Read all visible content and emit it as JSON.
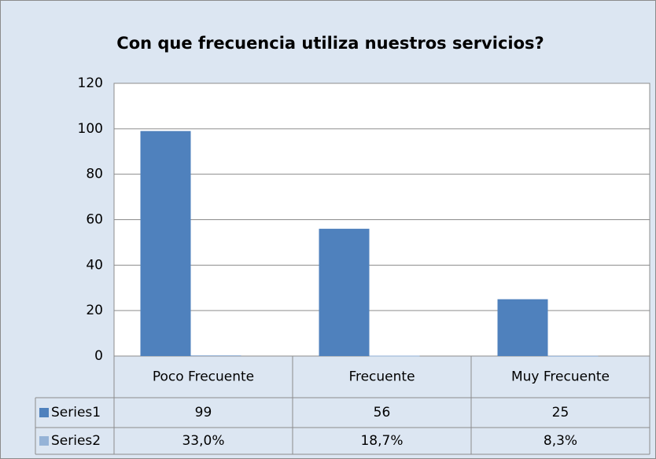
{
  "chart_data": {
    "type": "bar",
    "title": "Con que frecuencia utiliza  nuestros servicios?",
    "categories": [
      "Poco Frecuente",
      "Frecuente",
      "Muy Frecuente"
    ],
    "series": [
      {
        "name": "Series1",
        "color": "#4f81bd",
        "values": [
          99,
          56,
          25
        ]
      },
      {
        "name": "Series2",
        "color": "#95b3d7",
        "values": [
          0.33,
          0.187,
          0.083
        ],
        "value_labels": [
          "33,0%",
          "18,7%",
          "8,3%"
        ]
      }
    ],
    "ylim": [
      0,
      120
    ],
    "yticks": [
      0,
      20,
      40,
      60,
      80,
      100,
      120
    ],
    "grid": true,
    "data_table": true
  }
}
